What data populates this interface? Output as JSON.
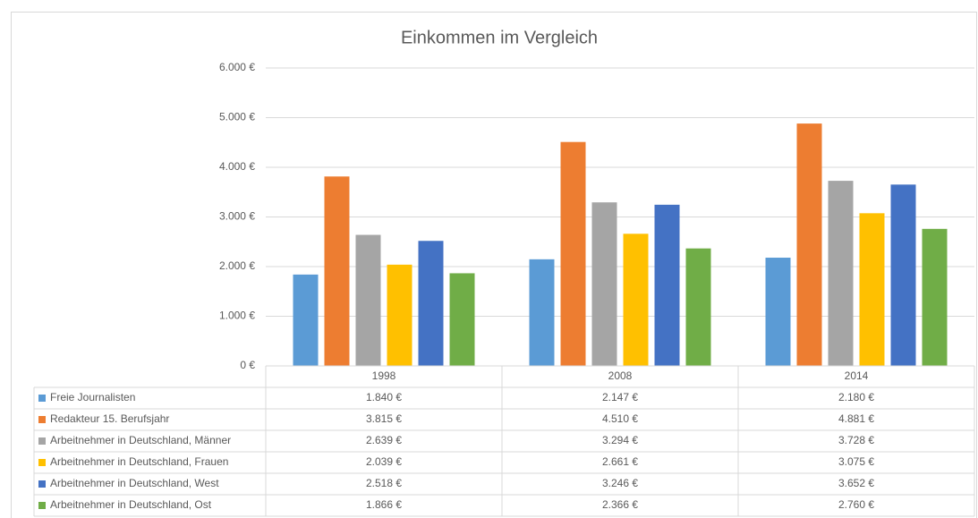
{
  "chart_data": {
    "type": "bar",
    "title": "Einkommen im Vergleich",
    "categories": [
      "1998",
      "2008",
      "2014"
    ],
    "ylim": [
      0,
      6000
    ],
    "yticks": [
      {
        "value": 0,
        "label": "0 €"
      },
      {
        "value": 1000,
        "label": "1.000 €"
      },
      {
        "value": 2000,
        "label": "2.000 €"
      },
      {
        "value": 3000,
        "label": "3.000 €"
      },
      {
        "value": 4000,
        "label": "4.000 €"
      },
      {
        "value": 5000,
        "label": "5.000 €"
      },
      {
        "value": 6000,
        "label": "6.000 €"
      }
    ],
    "grid": true,
    "series": [
      {
        "name": "Freie Journalisten",
        "color": "#5b9bd5",
        "values": [
          1840,
          2147,
          2180
        ],
        "value_labels": [
          "1.840 €",
          "2.147 €",
          "2.180 €"
        ]
      },
      {
        "name": "Redakteur 15. Berufsjahr",
        "color": "#ed7d31",
        "values": [
          3815,
          4510,
          4881
        ],
        "value_labels": [
          "3.815 €",
          "4.510 €",
          "4.881 €"
        ]
      },
      {
        "name": "Arbeitnehmer in Deutschland, Männer",
        "color": "#a5a5a5",
        "values": [
          2639,
          3294,
          3728
        ],
        "value_labels": [
          "2.639 €",
          "3.294 €",
          "3.728 €"
        ]
      },
      {
        "name": "Arbeitnehmer in Deutschland, Frauen",
        "color": "#ffc000",
        "values": [
          2039,
          2661,
          3075
        ],
        "value_labels": [
          "2.039 €",
          "2.661 €",
          "3.075 €"
        ]
      },
      {
        "name": "Arbeitnehmer in Deutschland, West",
        "color": "#4472c4",
        "values": [
          2518,
          3246,
          3652
        ],
        "value_labels": [
          "2.518 €",
          "3.246 €",
          "3.652 €"
        ]
      },
      {
        "name": "Arbeitnehmer in Deutschland, Ost",
        "color": "#70ad47",
        "values": [
          1866,
          2366,
          2760
        ],
        "value_labels": [
          "1.866 €",
          "2.366 €",
          "2.760 €"
        ]
      }
    ]
  }
}
